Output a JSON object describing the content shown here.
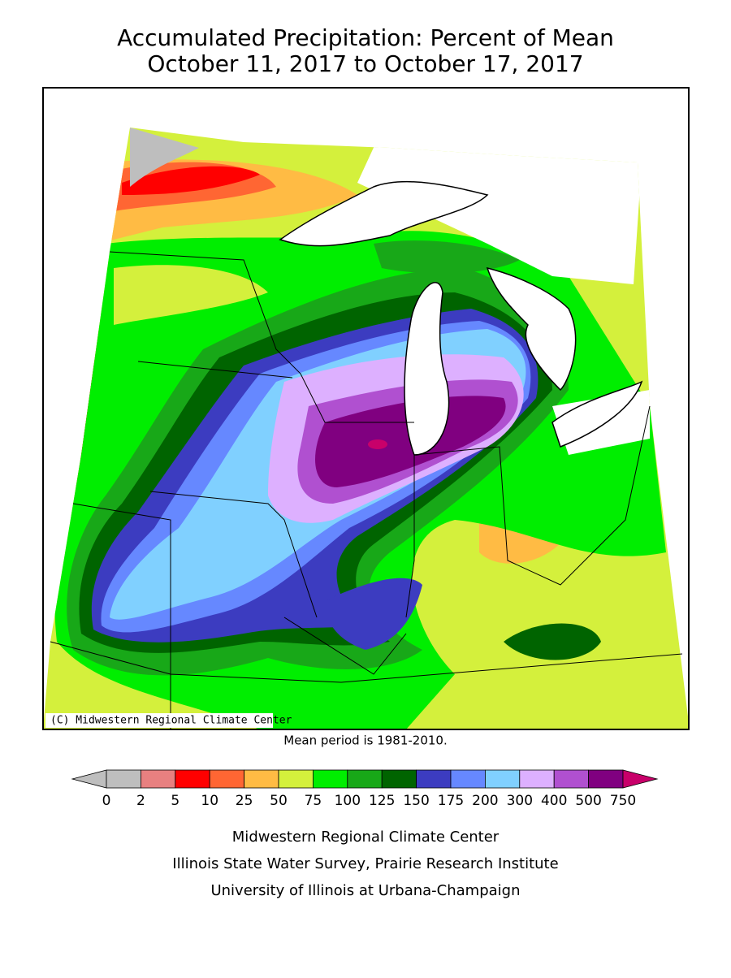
{
  "title": [
    "Accumulated Precipitation: Percent of Mean",
    "October 11, 2017 to October 17, 2017"
  ],
  "map": {
    "credit": "(C) Midwestern Regional Climate Center"
  },
  "note": "Mean period is 1981-2010.",
  "legend": {
    "labels": [
      0,
      2,
      5,
      10,
      25,
      50,
      75,
      100,
      125,
      150,
      175,
      200,
      300,
      400,
      500,
      750
    ],
    "colors": [
      "#bebebe",
      "#e88080",
      "#ff0000",
      "#ff6633",
      "#ffbb44",
      "#d4f03c",
      "#00ee00",
      "#18a818",
      "#006400",
      "#3c3cc0",
      "#6688ff",
      "#80d0ff",
      "#ddb0ff",
      "#b050d0",
      "#800080"
    ],
    "under_color": "#bebebe",
    "over_color": "#c8006a"
  },
  "footer": [
    "Midwestern Regional Climate Center",
    "Illinois State Water Survey, Prairie Research Institute",
    "University of Illinois at Urbana-Champaign"
  ]
}
